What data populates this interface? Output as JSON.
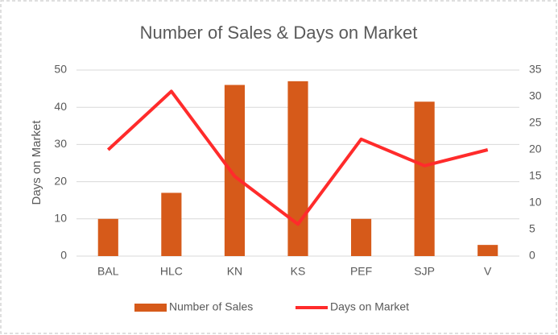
{
  "chart_data": {
    "type": "bar-line",
    "title": "Number of Sales & Days on Market",
    "y_label": "Days on Market",
    "categories": [
      "BAL",
      "HLC",
      "KN",
      "KS",
      "PEF",
      "SJP",
      "V"
    ],
    "series": [
      {
        "name": "Number of Sales",
        "type": "bar",
        "color": "#d65a1a",
        "axis": "y",
        "values": [
          10,
          17,
          46,
          47,
          10,
          41.5,
          3
        ]
      },
      {
        "name": "Days on Market",
        "type": "line",
        "color": "#ff2b2b",
        "axis": "y2",
        "values": [
          20,
          31,
          15,
          6,
          22,
          17,
          20
        ]
      }
    ],
    "ylim": [
      0,
      50
    ],
    "yticks": [
      0,
      10,
      20,
      30,
      40,
      50
    ],
    "y2lim": [
      0,
      35
    ],
    "y2ticks": [
      0,
      5,
      10,
      15,
      20,
      25,
      30,
      35
    ],
    "grid": true,
    "legend": "bottom"
  }
}
